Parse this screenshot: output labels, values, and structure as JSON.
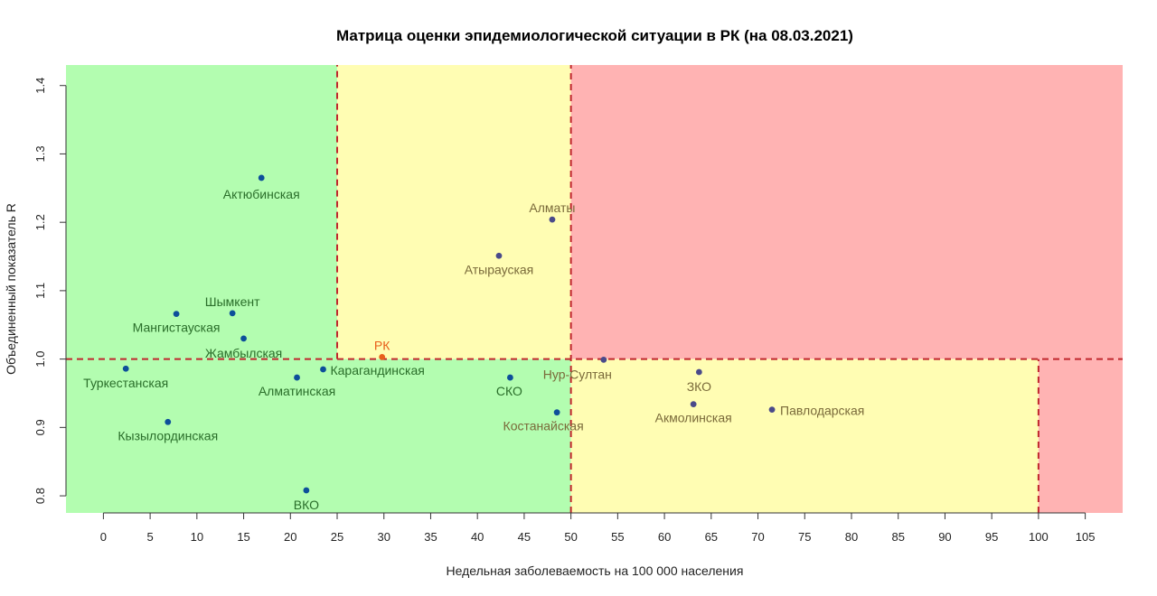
{
  "chart_data": {
    "type": "scatter",
    "title": "Матрица оценки эпидемиологической ситуации в РК (на 08.03.2021)",
    "xlabel": "Недельная заболеваемость на 100 000 населения",
    "ylabel": "Объединенный показатель R",
    "xlim": [
      -4,
      109
    ],
    "ylim": [
      0.775,
      1.43
    ],
    "x_ticks": [
      0,
      5,
      10,
      15,
      20,
      25,
      30,
      35,
      40,
      45,
      50,
      55,
      60,
      65,
      70,
      75,
      80,
      85,
      90,
      95,
      100,
      105
    ],
    "y_ticks": [
      0.8,
      0.9,
      1.0,
      1.1,
      1.2,
      1.3,
      1.4
    ],
    "grid": false,
    "zones": [
      {
        "x": [
          -4,
          25
        ],
        "y": [
          1.0,
          1.43
        ],
        "color": "#b3fdb0"
      },
      {
        "x": [
          25,
          50
        ],
        "y": [
          1.0,
          1.43
        ],
        "color": "#fffdb3"
      },
      {
        "x": [
          50,
          109
        ],
        "y": [
          1.0,
          1.43
        ],
        "color": "#ffb3b3"
      },
      {
        "x": [
          -4,
          50
        ],
        "y": [
          0.775,
          1.0
        ],
        "color": "#b3fdb0"
      },
      {
        "x": [
          50,
          100
        ],
        "y": [
          0.775,
          1.0
        ],
        "color": "#fffdb3"
      },
      {
        "x": [
          100,
          109
        ],
        "y": [
          0.775,
          1.0
        ],
        "color": "#ffb3b3"
      }
    ],
    "thresholds": {
      "color": "#c0272d",
      "vertical": [
        {
          "x": 25,
          "y": [
            1.0,
            1.43
          ]
        },
        {
          "x": 50,
          "y": [
            0.775,
            1.43
          ]
        },
        {
          "x": 100,
          "y": [
            0.775,
            1.0
          ]
        }
      ],
      "horizontal": [
        {
          "y": 1.0,
          "x": [
            -4,
            109
          ]
        }
      ]
    },
    "points": [
      {
        "label": "Актюбинская",
        "x": 16.9,
        "y": 1.265,
        "color": "#0d4f9a",
        "label_color": "#2a6e2a"
      },
      {
        "label": "Алматы",
        "x": 48.0,
        "y": 1.204,
        "color": "#4a4a8a",
        "label_color": "#7a6a3a"
      },
      {
        "label": "Атырауская",
        "x": 42.3,
        "y": 1.151,
        "color": "#4a4a8a",
        "label_color": "#7a6a3a"
      },
      {
        "label": "Шымкент",
        "x": 13.8,
        "y": 1.067,
        "color": "#0d4f9a",
        "label_color": "#2a6e2a"
      },
      {
        "label": "Мангистауская",
        "x": 7.8,
        "y": 1.066,
        "color": "#0d4f9a",
        "label_color": "#2a6e2a"
      },
      {
        "label": "Жамбылская",
        "x": 15.0,
        "y": 1.03,
        "color": "#0d4f9a",
        "label_color": "#2a6e2a"
      },
      {
        "label": "РК",
        "x": 29.8,
        "y": 1.003,
        "color": "#e8601c",
        "label_color": "#e8601c"
      },
      {
        "label": "Нур-Султан",
        "x": 53.5,
        "y": 0.999,
        "color": "#4a4a8a",
        "label_color": "#7a6a3a"
      },
      {
        "label": "Туркестанская",
        "x": 2.4,
        "y": 0.986,
        "color": "#0d4f9a",
        "label_color": "#2a6e2a"
      },
      {
        "label": "Карагандинская",
        "x": 23.5,
        "y": 0.985,
        "color": "#0d4f9a",
        "label_color": "#2a6e2a"
      },
      {
        "label": "Алматинская",
        "x": 20.7,
        "y": 0.973,
        "color": "#0d4f9a",
        "label_color": "#2a6e2a"
      },
      {
        "label": "СКО",
        "x": 43.5,
        "y": 0.973,
        "color": "#0d4f9a",
        "label_color": "#2a6e2a"
      },
      {
        "label": "ЗКО",
        "x": 63.7,
        "y": 0.981,
        "color": "#4a4a8a",
        "label_color": "#7a6a3a"
      },
      {
        "label": "Акмолинская",
        "x": 63.1,
        "y": 0.934,
        "color": "#4a4a8a",
        "label_color": "#7a6a3a"
      },
      {
        "label": "Павлодарская",
        "x": 71.5,
        "y": 0.926,
        "color": "#4a4a8a",
        "label_color": "#7a6a3a"
      },
      {
        "label": "Костанайская",
        "x": 48.5,
        "y": 0.922,
        "color": "#0d4f9a",
        "label_color": "#7a6a3a"
      },
      {
        "label": "Кызылординская",
        "x": 6.9,
        "y": 0.908,
        "color": "#0d4f9a",
        "label_color": "#2a6e2a"
      },
      {
        "label": "ВКО",
        "x": 21.7,
        "y": 0.808,
        "color": "#0d4f9a",
        "label_color": "#2a6e2a"
      }
    ]
  }
}
